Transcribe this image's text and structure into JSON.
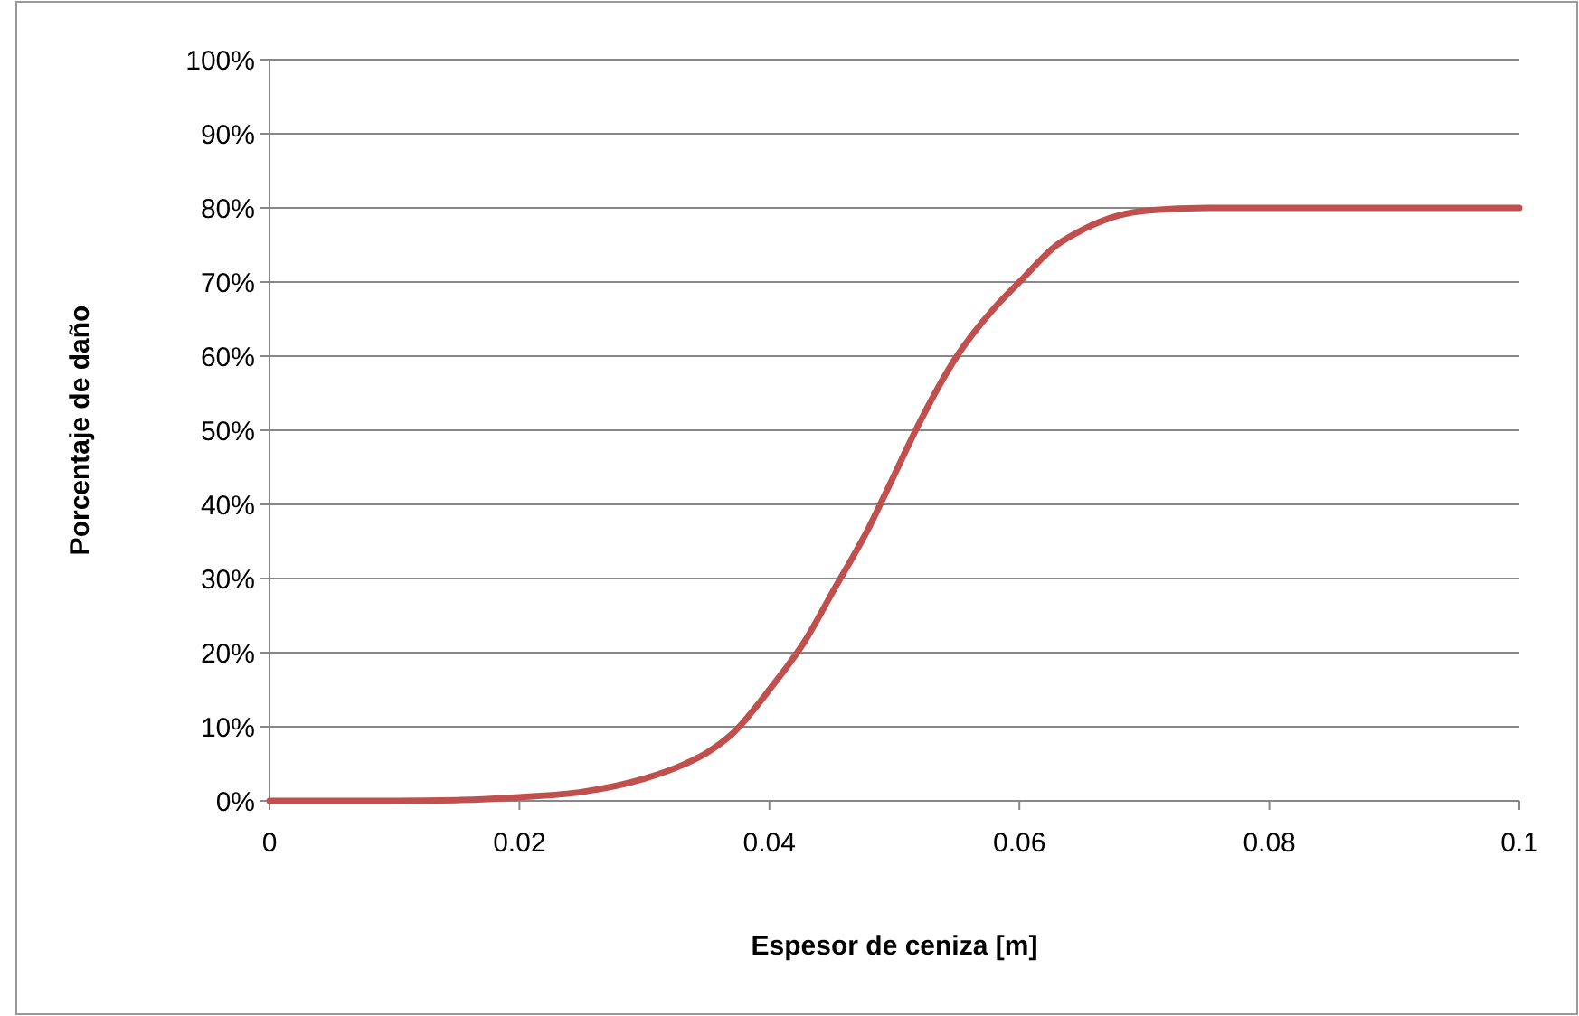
{
  "chart_data": {
    "type": "line",
    "xlabel": "Espesor de ceniza [m]",
    "ylabel": "Porcentaje de daño",
    "x": [
      0,
      0.01,
      0.015,
      0.02,
      0.025,
      0.03,
      0.033,
      0.035,
      0.037,
      0.04,
      0.043,
      0.045,
      0.048,
      0.05,
      0.052,
      0.055,
      0.058,
      0.06,
      0.063,
      0.065,
      0.068,
      0.07,
      0.075,
      0.08,
      0.09,
      0.1
    ],
    "series": [
      {
        "color": "#c0504d",
        "values": [
          0,
          0,
          0.1,
          0.5,
          1.2,
          3,
          4.8,
          6.5,
          9,
          15,
          22,
          28,
          37,
          44,
          51,
          60,
          66.5,
          70,
          75,
          77,
          79,
          79.6,
          80,
          80,
          80,
          80
        ]
      }
    ],
    "xlim": [
      0,
      0.1
    ],
    "xticks": [
      0,
      0.02,
      0.04,
      0.06,
      0.08,
      0.1
    ],
    "ylim": [
      0,
      100
    ],
    "yticks": [
      {
        "value": 0,
        "label": "0%"
      },
      {
        "value": 10,
        "label": "10%"
      },
      {
        "value": 20,
        "label": "20%"
      },
      {
        "value": 30,
        "label": "30%"
      },
      {
        "value": 40,
        "label": "40%"
      },
      {
        "value": 50,
        "label": "50%"
      },
      {
        "value": 60,
        "label": "60%"
      },
      {
        "value": 70,
        "label": "70%"
      },
      {
        "value": 80,
        "label": "80%"
      },
      {
        "value": 90,
        "label": "90%"
      },
      {
        "value": 100,
        "label": "100%"
      }
    ],
    "grid": "y",
    "marker": "none",
    "line_style": "solid"
  }
}
